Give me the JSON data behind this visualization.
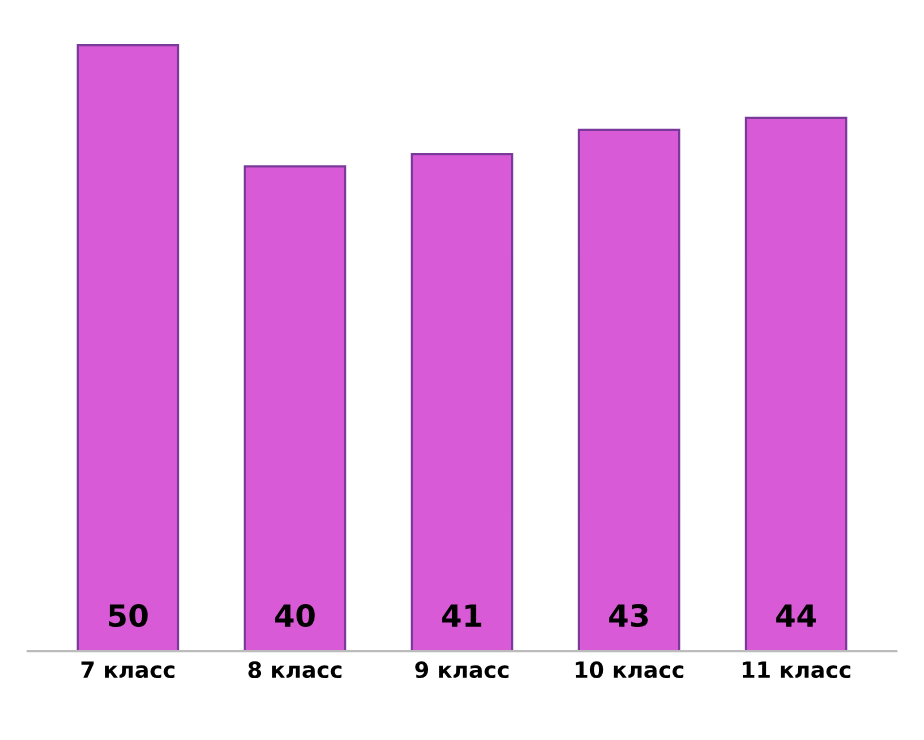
{
  "chart_data": {
    "type": "bar",
    "categories": [
      "7 класс",
      "8 класс",
      "9 класс",
      "10 класс",
      "11 класс"
    ],
    "values": [
      50,
      40,
      41,
      43,
      44
    ],
    "color": "#d95ad6",
    "data_labels": true,
    "grid": false,
    "legend": false,
    "tick_labels": "x"
  }
}
